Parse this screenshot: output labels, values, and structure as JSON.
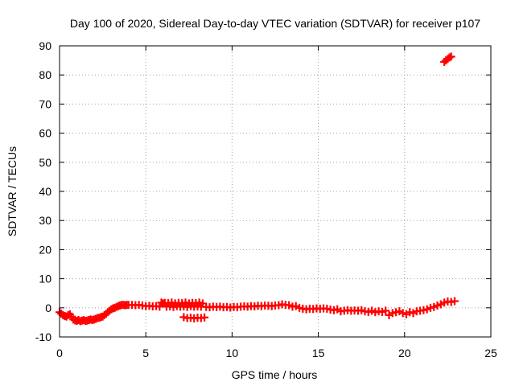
{
  "chart_data": {
    "type": "scatter",
    "title": "Day 100 of 2020, Sidereal Day-to-day VTEC variation (SDTVAR) for receiver p107",
    "xlabel": "GPS time / hours",
    "ylabel": "SDTVAR / TECUs",
    "xlim": [
      0,
      25
    ],
    "ylim": [
      -10,
      90
    ],
    "xticks": [
      0,
      5,
      10,
      15,
      20,
      25
    ],
    "yticks": [
      -10,
      0,
      10,
      20,
      30,
      40,
      50,
      60,
      70,
      80,
      90
    ],
    "grid": true,
    "marker": "+",
    "colors": {
      "points": "#ff0000",
      "grid": "#a0a0a0",
      "axes": "#000000"
    },
    "series": [
      {
        "name": "SDTVAR",
        "points": [
          [
            0.0,
            -1.5
          ],
          [
            0.1,
            -2.0
          ],
          [
            0.2,
            -2.5
          ],
          [
            0.3,
            -2.8
          ],
          [
            0.4,
            -3.0
          ],
          [
            0.5,
            -2.5
          ],
          [
            0.6,
            -2.2
          ],
          [
            0.7,
            -3.0
          ],
          [
            0.8,
            -4.0
          ],
          [
            0.9,
            -4.3
          ],
          [
            1.0,
            -4.5
          ],
          [
            1.1,
            -4.2
          ],
          [
            1.2,
            -4.6
          ],
          [
            1.3,
            -4.4
          ],
          [
            1.4,
            -4.2
          ],
          [
            1.5,
            -4.5
          ],
          [
            1.6,
            -4.4
          ],
          [
            1.7,
            -4.2
          ],
          [
            1.8,
            -4.0
          ],
          [
            1.9,
            -4.2
          ],
          [
            2.0,
            -4.0
          ],
          [
            2.1,
            -3.8
          ],
          [
            2.2,
            -3.5
          ],
          [
            2.3,
            -3.4
          ],
          [
            2.4,
            -3.2
          ],
          [
            2.5,
            -3.0
          ],
          [
            2.6,
            -2.5
          ],
          [
            2.7,
            -2.0
          ],
          [
            2.8,
            -1.5
          ],
          [
            2.9,
            -1.0
          ],
          [
            3.0,
            -0.5
          ],
          [
            3.1,
            -0.2
          ],
          [
            3.2,
            0.0
          ],
          [
            3.3,
            0.3
          ],
          [
            3.4,
            0.6
          ],
          [
            3.5,
            0.8
          ],
          [
            3.6,
            1.0
          ],
          [
            3.7,
            1.0
          ],
          [
            3.8,
            0.9
          ],
          [
            3.9,
            1.0
          ],
          [
            4.0,
            1.0
          ],
          [
            4.2,
            1.0
          ],
          [
            4.4,
            0.9
          ],
          [
            4.6,
            1.0
          ],
          [
            4.8,
            0.8
          ],
          [
            5.0,
            0.6
          ],
          [
            5.2,
            0.7
          ],
          [
            5.4,
            0.5
          ],
          [
            5.6,
            0.6
          ],
          [
            5.8,
            0.4
          ],
          [
            5.9,
            1.8
          ],
          [
            6.0,
            1.5
          ],
          [
            6.1,
            1.7
          ],
          [
            6.2,
            0.4
          ],
          [
            6.3,
            1.6
          ],
          [
            6.4,
            0.5
          ],
          [
            6.5,
            1.8
          ],
          [
            6.6,
            0.3
          ],
          [
            6.7,
            1.5
          ],
          [
            6.8,
            0.6
          ],
          [
            6.9,
            1.7
          ],
          [
            7.0,
            0.4
          ],
          [
            7.1,
            1.6
          ],
          [
            7.2,
            0.5
          ],
          [
            7.3,
            1.8
          ],
          [
            7.4,
            0.3
          ],
          [
            7.5,
            1.5
          ],
          [
            7.6,
            0.6
          ],
          [
            7.7,
            1.7
          ],
          [
            7.8,
            0.4
          ],
          [
            7.9,
            1.6
          ],
          [
            8.0,
            0.5
          ],
          [
            8.1,
            1.8
          ],
          [
            8.2,
            0.4
          ],
          [
            8.3,
            1.5
          ],
          [
            7.2,
            -3.2
          ],
          [
            7.4,
            -3.5
          ],
          [
            7.6,
            -3.4
          ],
          [
            7.8,
            -3.6
          ],
          [
            8.0,
            -3.4
          ],
          [
            8.2,
            -3.5
          ],
          [
            8.4,
            -3.3
          ],
          [
            8.5,
            0.3
          ],
          [
            8.7,
            0.2
          ],
          [
            8.9,
            0.4
          ],
          [
            9.1,
            0.3
          ],
          [
            9.3,
            0.4
          ],
          [
            9.5,
            0.2
          ],
          [
            9.7,
            0.3
          ],
          [
            9.9,
            0.1
          ],
          [
            10.1,
            0.3
          ],
          [
            10.3,
            0.2
          ],
          [
            10.5,
            0.4
          ],
          [
            10.7,
            0.5
          ],
          [
            10.9,
            0.4
          ],
          [
            11.1,
            0.6
          ],
          [
            11.3,
            0.5
          ],
          [
            11.5,
            0.7
          ],
          [
            11.7,
            0.6
          ],
          [
            11.9,
            0.8
          ],
          [
            12.1,
            0.7
          ],
          [
            12.3,
            0.6
          ],
          [
            12.5,
            0.8
          ],
          [
            12.7,
            0.9
          ],
          [
            12.9,
            1.2
          ],
          [
            13.1,
            1.0
          ],
          [
            13.3,
            0.9
          ],
          [
            13.5,
            0.4
          ],
          [
            13.7,
            0.6
          ],
          [
            13.9,
            0.0
          ],
          [
            14.1,
            -0.3
          ],
          [
            14.3,
            -0.5
          ],
          [
            14.5,
            -0.3
          ],
          [
            14.7,
            -0.4
          ],
          [
            14.9,
            -0.2
          ],
          [
            15.1,
            -0.3
          ],
          [
            15.3,
            -0.2
          ],
          [
            15.5,
            -0.3
          ],
          [
            15.7,
            -0.6
          ],
          [
            15.9,
            -0.8
          ],
          [
            16.1,
            -0.5
          ],
          [
            16.3,
            -1.2
          ],
          [
            16.5,
            -1.0
          ],
          [
            16.7,
            -0.8
          ],
          [
            16.9,
            -1.0
          ],
          [
            17.1,
            -0.9
          ],
          [
            17.3,
            -1.0
          ],
          [
            17.5,
            -0.8
          ],
          [
            17.7,
            -1.2
          ],
          [
            17.9,
            -1.4
          ],
          [
            18.1,
            -1.0
          ],
          [
            18.3,
            -1.5
          ],
          [
            18.5,
            -1.2
          ],
          [
            18.7,
            -1.4
          ],
          [
            18.9,
            -1.0
          ],
          [
            19.1,
            -2.5
          ],
          [
            19.3,
            -1.8
          ],
          [
            19.5,
            -1.5
          ],
          [
            19.7,
            -1.2
          ],
          [
            19.9,
            -1.8
          ],
          [
            20.1,
            -2.2
          ],
          [
            20.3,
            -1.5
          ],
          [
            20.5,
            -1.8
          ],
          [
            20.7,
            -1.2
          ],
          [
            20.9,
            -1.0
          ],
          [
            21.1,
            -0.8
          ],
          [
            21.3,
            -0.5
          ],
          [
            21.5,
            0.0
          ],
          [
            21.7,
            0.3
          ],
          [
            21.9,
            0.8
          ],
          [
            22.1,
            1.2
          ],
          [
            22.3,
            1.8
          ],
          [
            22.5,
            2.2
          ],
          [
            22.7,
            2.0
          ],
          [
            22.9,
            2.3
          ],
          [
            22.3,
            84.5
          ],
          [
            22.4,
            85.0
          ],
          [
            22.5,
            85.5
          ],
          [
            22.6,
            86.0
          ],
          [
            22.7,
            86.3
          ]
        ]
      }
    ]
  }
}
